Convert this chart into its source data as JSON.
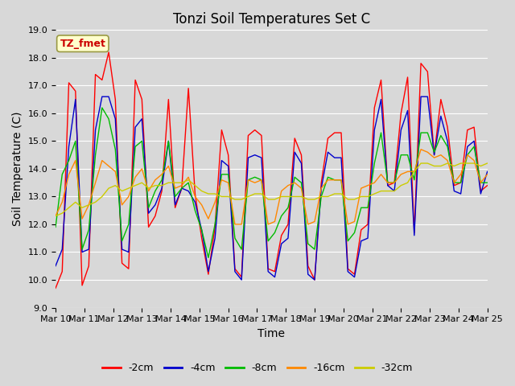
{
  "title": "Tonzi Soil Temperatures Set C",
  "xlabel": "Time",
  "ylabel": "Soil Temperature (C)",
  "ylim": [
    9.0,
    19.0
  ],
  "yticks": [
    9.0,
    10.0,
    11.0,
    12.0,
    13.0,
    14.0,
    15.0,
    16.0,
    17.0,
    18.0,
    19.0
  ],
  "xtick_labels": [
    "Mar 10",
    "Mar 11",
    "Mar 12",
    "Mar 13",
    "Mar 14",
    "Mar 15",
    "Mar 16",
    "Mar 17",
    "Mar 18",
    "Mar 19",
    "Mar 20",
    "Mar 21",
    "Mar 22",
    "Mar 23",
    "Mar 24",
    "Mar 25"
  ],
  "legend_label": "TZ_fmet",
  "legend_box_facecolor": "#ffffcc",
  "legend_box_edgecolor": "#999944",
  "legend_text_color": "#cc0000",
  "series_labels": [
    "-2cm",
    "-4cm",
    "-8cm",
    "-16cm",
    "-32cm"
  ],
  "series_colors": [
    "#ff0000",
    "#0000cc",
    "#00bb00",
    "#ff8800",
    "#cccc00"
  ],
  "background_color": "#d8d8d8",
  "plot_bg_color": "#d8d8d8",
  "grid_color": "#ffffff",
  "title_fontsize": 12,
  "axis_label_fontsize": 10,
  "tick_fontsize": 8,
  "t_2cm": [
    9.7,
    10.3,
    17.1,
    16.8,
    9.8,
    10.5,
    17.4,
    17.2,
    18.2,
    16.5,
    10.6,
    10.4,
    17.2,
    16.5,
    11.9,
    12.3,
    13.2,
    16.5,
    12.6,
    13.3,
    16.9,
    13.1,
    11.5,
    10.2,
    11.9,
    15.4,
    14.5,
    10.4,
    10.1,
    15.2,
    15.4,
    15.2,
    10.4,
    10.3,
    11.6,
    12.0,
    15.1,
    14.5,
    10.5,
    10.0,
    13.5,
    15.1,
    15.3,
    15.3,
    10.4,
    10.2,
    11.8,
    12.0,
    16.2,
    17.2,
    13.4,
    13.5,
    16.0,
    17.3,
    11.7,
    17.8,
    17.5,
    14.5,
    16.5,
    15.5,
    13.4,
    13.5,
    15.4,
    15.5,
    13.2,
    13.4
  ],
  "t_4cm": [
    10.5,
    11.1,
    14.8,
    16.5,
    11.0,
    11.1,
    15.4,
    16.6,
    16.6,
    15.8,
    11.1,
    11.0,
    15.5,
    15.8,
    12.4,
    12.7,
    13.3,
    15.0,
    12.7,
    13.3,
    13.2,
    12.8,
    11.8,
    10.3,
    11.5,
    14.3,
    14.1,
    10.3,
    10.0,
    14.4,
    14.5,
    14.4,
    10.3,
    10.1,
    11.3,
    11.5,
    14.6,
    14.2,
    10.2,
    10.0,
    13.3,
    14.6,
    14.4,
    14.4,
    10.3,
    10.1,
    11.4,
    11.5,
    15.4,
    16.5,
    13.4,
    13.2,
    15.4,
    16.1,
    11.6,
    16.6,
    16.6,
    14.5,
    15.9,
    15.0,
    13.2,
    13.1,
    14.8,
    15.0,
    13.1,
    13.9
  ],
  "t_8cm": [
    11.9,
    13.8,
    14.3,
    15.0,
    11.1,
    11.8,
    14.5,
    16.2,
    15.8,
    14.7,
    11.4,
    12.0,
    14.8,
    15.0,
    12.6,
    13.2,
    13.6,
    15.0,
    13.0,
    13.3,
    13.5,
    12.5,
    11.8,
    10.8,
    12.0,
    13.8,
    13.8,
    11.5,
    11.1,
    13.6,
    13.7,
    13.6,
    11.4,
    11.7,
    12.3,
    12.6,
    13.7,
    13.5,
    11.3,
    11.1,
    13.0,
    13.7,
    13.6,
    13.6,
    11.4,
    11.7,
    12.6,
    12.6,
    14.2,
    15.3,
    13.5,
    13.5,
    14.5,
    14.5,
    13.6,
    15.3,
    15.3,
    14.6,
    15.2,
    14.8,
    13.5,
    13.5,
    14.5,
    14.8,
    13.5,
    13.5
  ],
  "t_16cm": [
    12.3,
    12.8,
    13.8,
    14.3,
    12.2,
    12.7,
    13.5,
    14.3,
    14.1,
    13.9,
    12.7,
    13.0,
    13.7,
    14.0,
    13.2,
    13.6,
    13.8,
    14.1,
    13.3,
    13.4,
    13.7,
    13.0,
    12.7,
    12.2,
    12.8,
    13.6,
    13.5,
    12.0,
    12.0,
    13.6,
    13.5,
    13.6,
    12.0,
    12.1,
    13.2,
    13.4,
    13.5,
    13.3,
    12.0,
    12.1,
    13.3,
    13.6,
    13.6,
    13.6,
    12.0,
    12.1,
    13.3,
    13.4,
    13.5,
    13.8,
    13.5,
    13.5,
    13.8,
    13.9,
    13.9,
    14.7,
    14.6,
    14.4,
    14.5,
    14.3,
    13.5,
    13.8,
    14.5,
    14.3,
    13.5,
    13.8
  ],
  "t_32cm": [
    12.3,
    12.4,
    12.6,
    12.8,
    12.6,
    12.7,
    12.8,
    13.0,
    13.3,
    13.4,
    13.2,
    13.3,
    13.4,
    13.5,
    13.3,
    13.4,
    13.4,
    13.5,
    13.5,
    13.5,
    13.6,
    13.4,
    13.2,
    13.1,
    13.1,
    13.0,
    13.0,
    12.9,
    12.9,
    13.0,
    13.1,
    13.1,
    12.9,
    12.9,
    13.0,
    13.0,
    13.0,
    13.0,
    12.9,
    12.9,
    13.0,
    13.0,
    13.1,
    13.1,
    12.9,
    12.9,
    13.0,
    13.0,
    13.1,
    13.2,
    13.2,
    13.2,
    13.4,
    13.5,
    13.9,
    14.2,
    14.2,
    14.1,
    14.1,
    14.2,
    14.1,
    14.2,
    14.2,
    14.2,
    14.1,
    14.2
  ]
}
